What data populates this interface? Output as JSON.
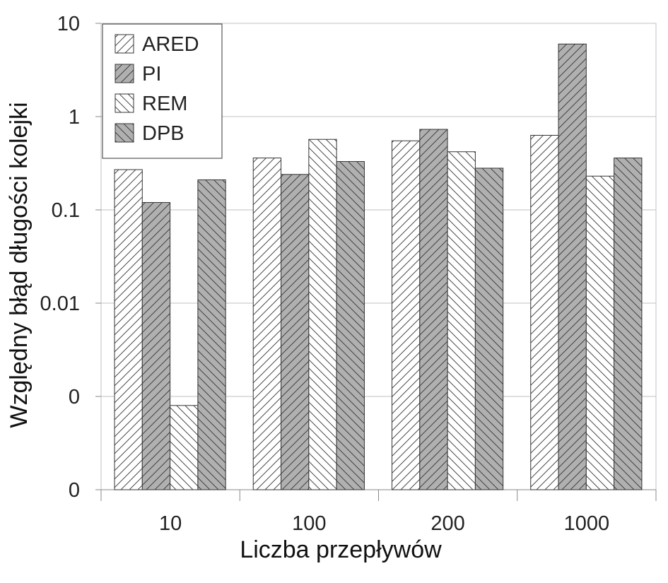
{
  "chart_data": {
    "type": "bar",
    "xlabel": "Liczba przepływów",
    "ylabel": "Względny błąd długości kolejki",
    "yscale": "log",
    "ylim": [
      0.0001,
      10
    ],
    "y_tick_values": [
      0.0001,
      0.001,
      0.01,
      0.1,
      1,
      10
    ],
    "y_tick_labels": [
      "0",
      "0",
      "0.01",
      "0.1",
      "1",
      "10"
    ],
    "grid": "horizontal",
    "legend_position": "top-left",
    "categories": [
      "10",
      "100",
      "200",
      "1000"
    ],
    "series": [
      {
        "name": "ARED",
        "pattern": "hatch-forward",
        "fill": "#ffffff",
        "values": [
          0.27,
          0.36,
          0.55,
          0.63
        ]
      },
      {
        "name": "PI",
        "pattern": "hatch-forward",
        "fill": "#b0b0b0",
        "values": [
          0.12,
          0.24,
          0.73,
          6.0
        ]
      },
      {
        "name": "REM",
        "pattern": "hatch-back",
        "fill": "#ffffff",
        "values": [
          0.0008,
          0.57,
          0.42,
          0.23
        ]
      },
      {
        "name": "DPB",
        "pattern": "hatch-back",
        "fill": "#b0b0b0",
        "values": [
          0.21,
          0.33,
          0.28,
          0.36
        ]
      }
    ]
  }
}
